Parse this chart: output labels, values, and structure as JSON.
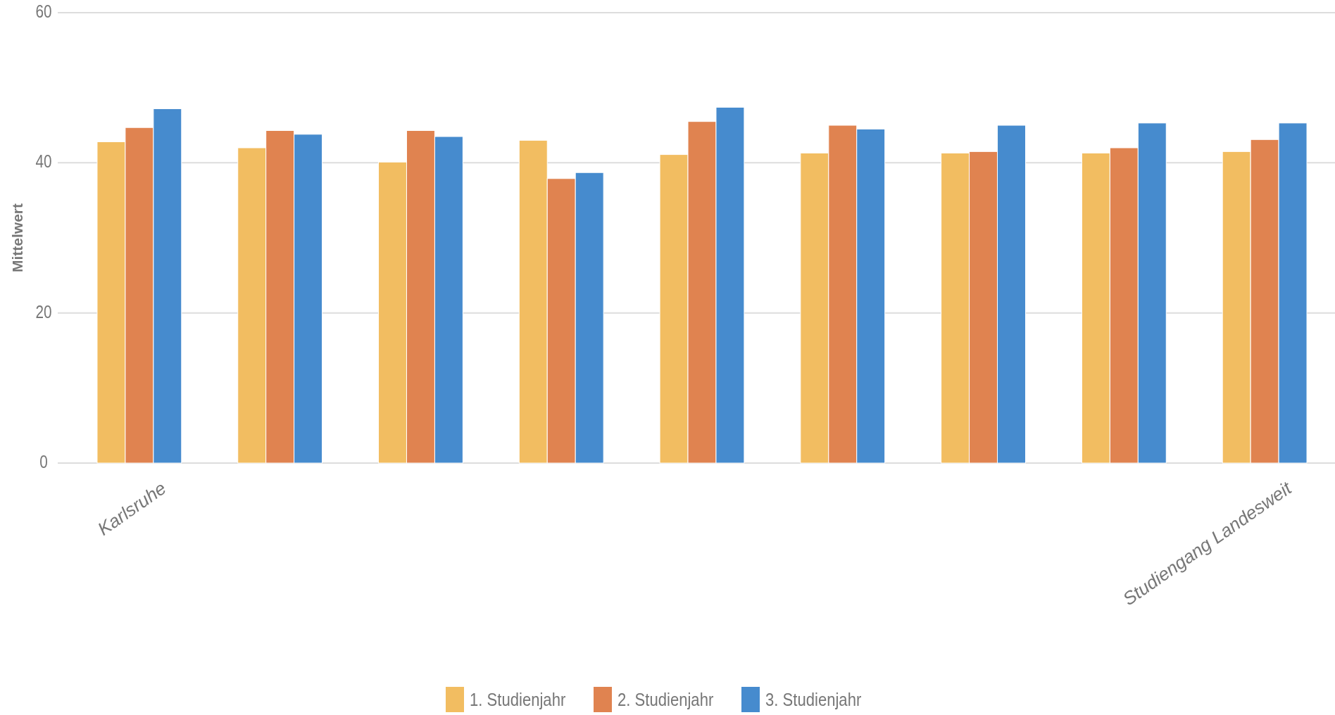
{
  "chart_data": {
    "type": "bar",
    "ylabel": "Mittelwert",
    "categories": [
      "Karlsruhe",
      null,
      null,
      null,
      null,
      null,
      null,
      null,
      "Studiengang Landesweit"
    ],
    "series": [
      {
        "name": "1. Studienjahr",
        "color": "#f2bd61",
        "values": [
          42.8,
          42.0,
          40.1,
          43.0,
          41.1,
          41.3,
          41.3,
          41.3,
          41.5
        ]
      },
      {
        "name": "2. Studienjahr",
        "color": "#e08350",
        "values": [
          44.7,
          44.3,
          44.3,
          37.9,
          45.5,
          45.0,
          41.5,
          42.0,
          43.1
        ]
      },
      {
        "name": "3. Studienjahr",
        "color": "#468bce",
        "values": [
          47.2,
          43.8,
          43.5,
          38.7,
          47.4,
          44.5,
          45.0,
          45.3,
          45.3
        ]
      }
    ],
    "ylim": [
      0,
      60
    ],
    "yticks": [
      0,
      20,
      40,
      60
    ],
    "grid": "y",
    "legend": "bottom"
  }
}
